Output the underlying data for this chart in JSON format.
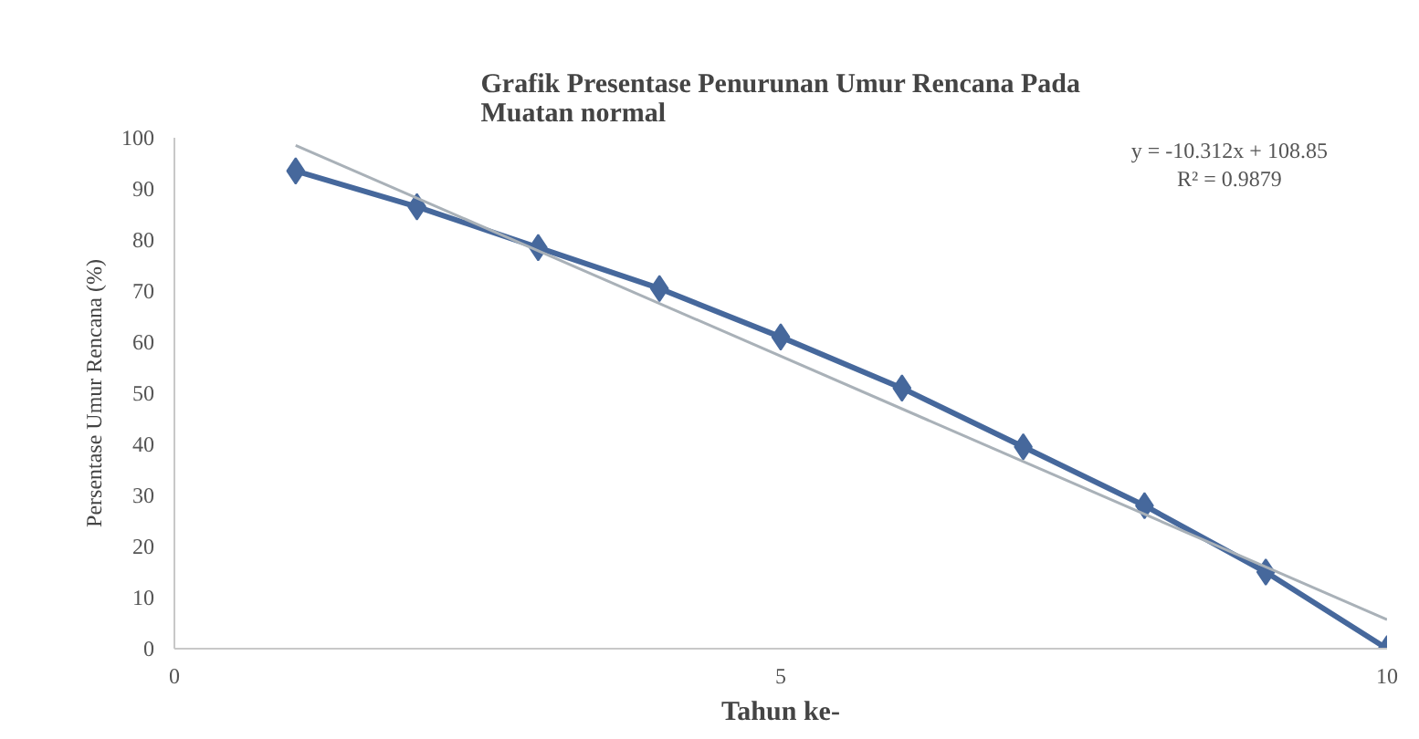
{
  "chart_data": {
    "type": "line",
    "title": "Grafik Presentase Penurunan Umur Rencana Pada\nMuatan normal",
    "xlabel": "Tahun ke-",
    "ylabel": "Persentase Umur Rencana (%)",
    "x": [
      1,
      2,
      3,
      4,
      5,
      6,
      7,
      8,
      9,
      10
    ],
    "series": [
      {
        "color": "#46689c",
        "values": [
          93.5,
          86.5,
          78.5,
          70.5,
          61,
          51,
          39.5,
          28,
          15,
          0
        ],
        "marker": "diamond"
      },
      {
        "type": "line",
        "color": "#a9b1b8",
        "x": [
          1,
          10
        ],
        "values": [
          98.5,
          5.7
        ],
        "marker": "none"
      }
    ],
    "xlim": [
      0,
      10
    ],
    "xticks": [
      0,
      5,
      10
    ],
    "ylim": [
      0,
      100
    ],
    "yticks": [
      0,
      10,
      20,
      30,
      40,
      50,
      60,
      70,
      80,
      90,
      100
    ],
    "annotations": [
      "y = -10.312x + 108.85",
      "R² = 0.9879"
    ],
    "grid": false,
    "line_style": "solid"
  }
}
